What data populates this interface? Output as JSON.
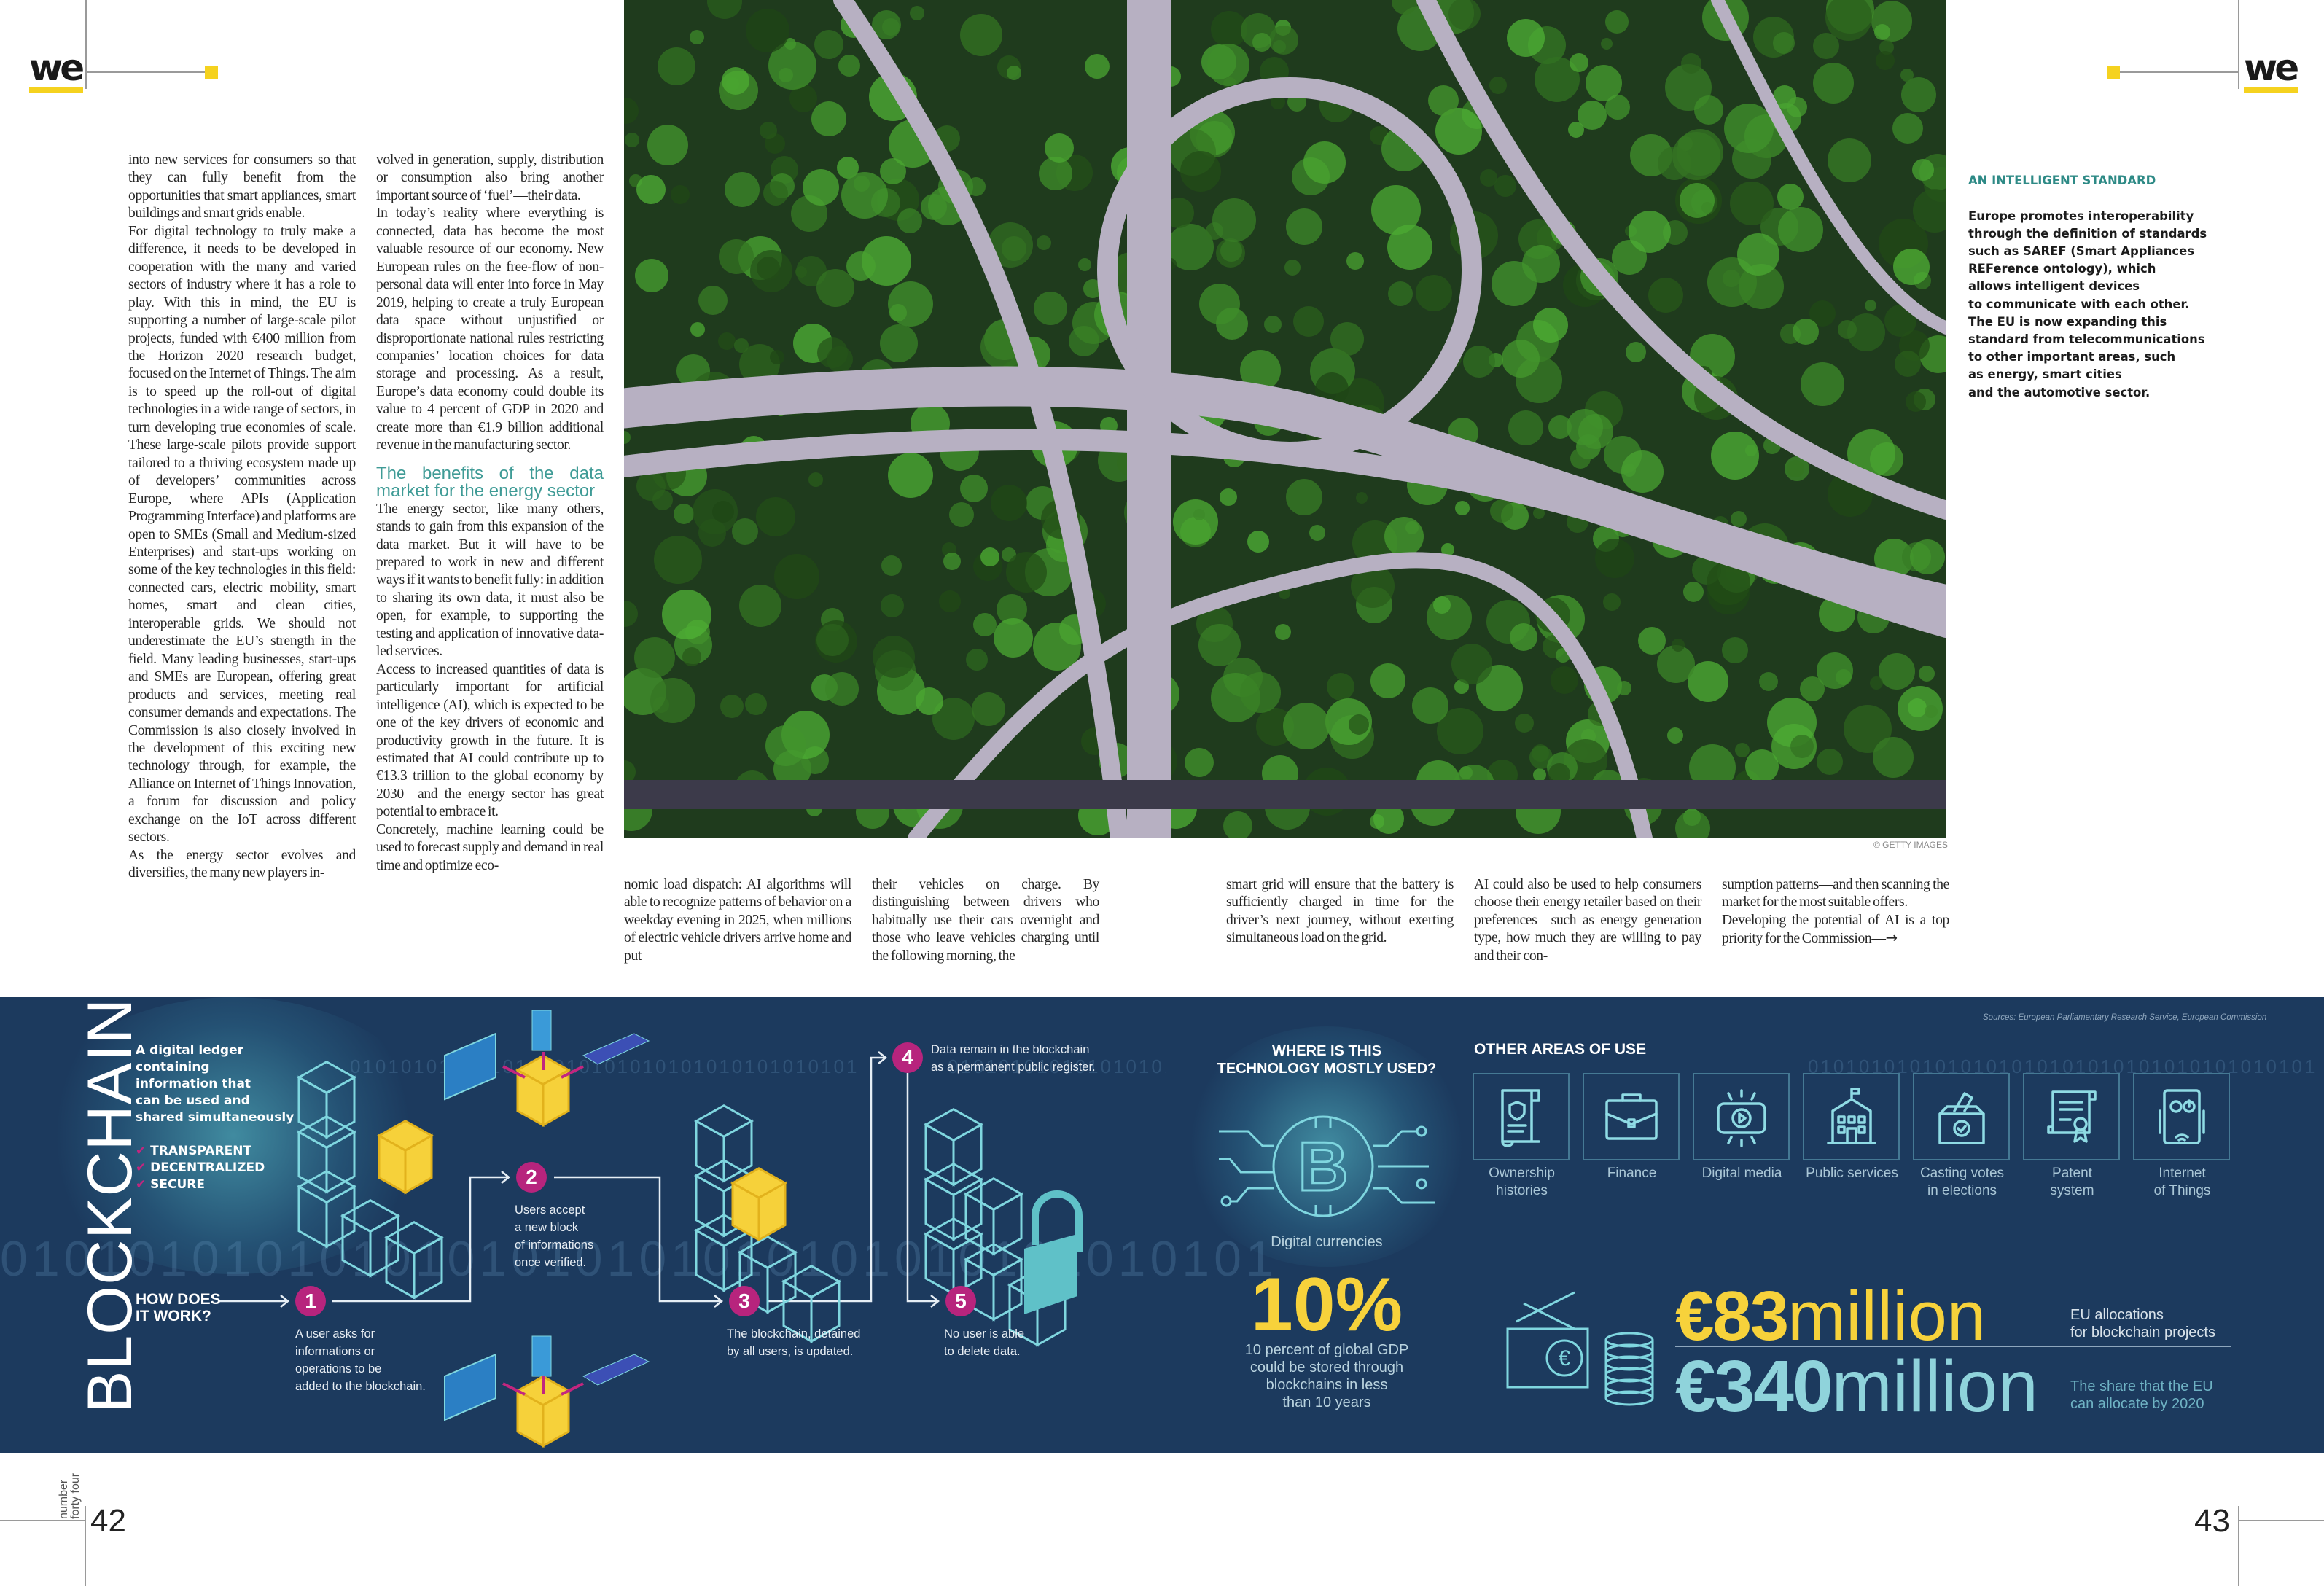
{
  "header": {
    "logo_left": "we",
    "logo_right": "we"
  },
  "colors": {
    "accent_yellow": "#f5d21f",
    "teal_heading": "#3f9b96",
    "infographic_bg": "#1c3a5e",
    "step_magenta": "#b7247d",
    "stat_yellow": "#f7d23b",
    "stat_teal": "#8fd3db"
  },
  "article": {
    "col1": [
      "into new services for consumers so that they can fully benefit from the opportunities that smart appliances, smart buildings and smart grids enable.",
      "For digital technology to truly make a difference, it needs to be developed in cooperation with the many and varied sectors of industry where it has a role to play. With this in mind, the EU is supporting a number of large-scale pilot projects, funded with €400 million from the Horizon 2020 research budget, focused on the Internet of Things. The aim is to speed up the roll-out of digital technologies in a wide range of sectors, in turn developing true economies of scale. These large-scale pilots provide support tailored to a thriving ecosystem made up of developers’ communities across Europe, where APIs (Application Programming Interface) and platforms are open to SMEs (Small and Medium-sized Enterprises) and start-ups working on some of the key technologies in this field: connected cars, electric mobility, smart homes, smart and clean cities, interoperable grids. We should not underestimate the EU’s strength in the field. Many leading businesses, start-ups and SMEs are European, offering great products and services, meeting real consumer demands and expectations. The Commission is also closely involved in the development of this exciting new technology through, for example, the Alliance on Internet of Things Innovation, a forum for discussion and policy exchange on the IoT across different sectors.",
      "As the energy sector evolves and diversifies, the many new players in-"
    ],
    "col2": [
      "volved in generation, supply, distribution or consumption also bring another important source of ‘fuel’—their data.",
      "In today’s reality where everything is connected, data has become the most valuable resource of our economy. New European rules on the free-flow of non-personal data will enter into force in May 2019, helping to create a truly European data space without unjustified or disproportionate national rules restricting companies’ location choices for data storage and processing. As a result, Europe’s data economy could double its value to 4 percent of GDP in 2020 and create more than €1.9 billion additional revenue in the manufacturing sector."
    ],
    "subheading": "The benefits of the data market for the energy sector",
    "col2b": [
      "The energy sector, like many others, stands to gain from this expansion of the data market. But it will have to be prepared to work in new and different ways if it wants to benefit fully: in addition to sharing its own data, it must also be open, for example, to supporting the testing and application of innovative data-led services.",
      "Access to increased quantities of data is particularly important for artificial intelligence (AI), which is expected to be one of the key drivers of economic and productivity growth in the future. It is estimated that AI could contribute up to €13.3 trillion to the global economy by 2030—and the energy sector has great potential to embrace it.",
      "Concretely, machine learning could be used to forecast supply and demand in real time and optimize eco-"
    ],
    "col3": "nomic load dispatch: AI algorithms will able to recognize patterns of behavior on a weekday evening in 2025, when millions of electric vehicle drivers arrive home and put",
    "col4": "their vehicles on charge. By distinguishing between drivers who habitually use their cars overnight and those who leave vehicles charging until the following morning, the",
    "col5": "smart grid will ensure that the battery is sufficiently charged in time for the driver’s next journey, without exerting simultaneous load on the grid.",
    "col6": "AI could also be used to help consumers choose their energy retailer based on their preferences—such as energy generation type, how much they are willing to pay and their con-",
    "col7": [
      "sumption patterns—and then scanning the market for the most suitable offers.",
      "Developing the potential of AI is a top priority for the Commission—"
    ],
    "continue_arrow": "→"
  },
  "photo": {
    "credit": "© GETTY IMAGES"
  },
  "sidebar": {
    "title": "AN INTELLIGENT STANDARD",
    "body": "Europe promotes interoperability\nthrough the definition of standards\nsuch as SAREF (Smart Appliances\nREFerence ontology), which\nallows intelligent devices\nto communicate with each other.\nThe EU is now expanding this\nstandard from telecommunications\nto other important areas, such\nas energy, smart cities\nand the automotive sector."
  },
  "infographic": {
    "title": "BLOCKCHAIN",
    "definition": "A digital ledger\ncontaining\ninformation that\ncan be used and\nshared simultaneously",
    "features": [
      "TRANSPARENT",
      "DECENTRALIZED",
      "SECURE"
    ],
    "how_title": "HOW DOES\nIT WORK?",
    "steps": [
      {
        "num": "1",
        "text": "A user asks for\ninformations or\noperations to be\nadded to the blockchain."
      },
      {
        "num": "2",
        "text": "Users accept\na new block\nof informations\nonce verified."
      },
      {
        "num": "3",
        "text": "The blockchain, detained\nby all users, is updated."
      },
      {
        "num": "4",
        "text": "Data remain in the blockchain\nas a permanent public register."
      },
      {
        "num": "5",
        "text": "No user is able\nto delete data."
      }
    ],
    "where_title": "WHERE IS THIS\nTECHNOLOGY MOSTLY USED?",
    "where_label": "Digital currencies",
    "stat_value": "10%",
    "stat_caption": "10 percent of global GDP\ncould be stored through\nblockchains in less\nthan 10 years",
    "other_title": "OTHER AREAS OF USE",
    "areas": [
      {
        "label": "Ownership\nhistories",
        "icon": "scroll-shield-icon"
      },
      {
        "label": "Finance",
        "icon": "briefcase-icon"
      },
      {
        "label": "Digital media",
        "icon": "video-tablet-icon"
      },
      {
        "label": "Public services",
        "icon": "building-icon"
      },
      {
        "label": "Casting votes\nin elections",
        "icon": "ballot-box-icon"
      },
      {
        "label": "Patent\nsystem",
        "icon": "certificate-icon"
      },
      {
        "label": "Internet\nof Things",
        "icon": "smart-device-icon"
      }
    ],
    "sources": "Sources: European Parliamentary Research Service, European Commission",
    "money": [
      {
        "amount": "€83",
        "unit": "million",
        "caption": "EU allocations\nfor blockchain projects"
      },
      {
        "amount": "€340",
        "unit": "million",
        "caption": "The share that the EU\ncan allocate by 2020"
      }
    ],
    "binary": "0101010101010101010101010101010101010101"
  },
  "footer": {
    "issue_label": "number\nforty four",
    "page_left": "42",
    "page_right": "43"
  }
}
